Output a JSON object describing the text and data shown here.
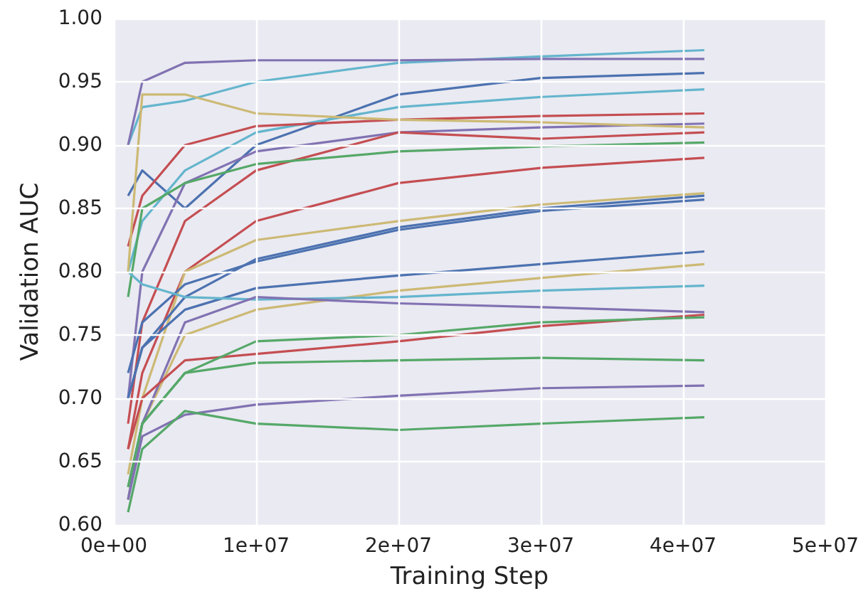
{
  "chart_data": {
    "type": "line",
    "xlabel": "Training Step",
    "ylabel": "Validation AUC",
    "x": [
      1000000,
      2000000,
      5000000,
      10000000,
      20000000,
      30000000,
      41500000
    ],
    "xlim": [
      0,
      50000000
    ],
    "xticks": [
      {
        "value": 0,
        "label": "0e+00"
      },
      {
        "value": 10000000,
        "label": "1e+07"
      },
      {
        "value": 20000000,
        "label": "2e+07"
      },
      {
        "value": 30000000,
        "label": "3e+07"
      },
      {
        "value": 40000000,
        "label": "4e+07"
      },
      {
        "value": 50000000,
        "label": "5e+07"
      }
    ],
    "ylim": [
      0.6,
      1.0
    ],
    "yticks": [
      {
        "value": 0.6,
        "label": "0.60"
      },
      {
        "value": 0.65,
        "label": "0.65"
      },
      {
        "value": 0.7,
        "label": "0.70"
      },
      {
        "value": 0.75,
        "label": "0.75"
      },
      {
        "value": 0.8,
        "label": "0.80"
      },
      {
        "value": 0.85,
        "label": "0.85"
      },
      {
        "value": 0.9,
        "label": "0.90"
      },
      {
        "value": 0.95,
        "label": "0.95"
      },
      {
        "value": 1.0,
        "label": "1.00"
      }
    ],
    "grid": true,
    "marker": "none",
    "line_style": "solid",
    "series": [
      {
        "color": "#64b5cd",
        "values": [
          0.9,
          0.93,
          0.935,
          0.95,
          0.965,
          0.97,
          0.975
        ]
      },
      {
        "color": "#8172b2",
        "values": [
          0.9,
          0.95,
          0.965,
          0.967,
          0.967,
          0.968,
          0.968
        ]
      },
      {
        "color": "#4c72b0",
        "values": [
          0.86,
          0.88,
          0.85,
          0.9,
          0.94,
          0.953,
          0.957
        ]
      },
      {
        "color": "#64b5cd",
        "values": [
          0.8,
          0.84,
          0.88,
          0.91,
          0.93,
          0.938,
          0.944
        ]
      },
      {
        "color": "#c44e52",
        "values": [
          0.82,
          0.86,
          0.9,
          0.915,
          0.92,
          0.923,
          0.925
        ]
      },
      {
        "color": "#8172b2",
        "values": [
          0.7,
          0.8,
          0.87,
          0.895,
          0.91,
          0.914,
          0.917
        ]
      },
      {
        "color": "#ccb974",
        "values": [
          0.8,
          0.94,
          0.94,
          0.925,
          0.92,
          0.918,
          0.914
        ]
      },
      {
        "color": "#c44e52",
        "values": [
          0.68,
          0.76,
          0.84,
          0.88,
          0.91,
          0.905,
          0.91
        ]
      },
      {
        "color": "#55a868",
        "values": [
          0.78,
          0.85,
          0.87,
          0.885,
          0.895,
          0.899,
          0.902
        ]
      },
      {
        "color": "#c44e52",
        "values": [
          0.66,
          0.72,
          0.8,
          0.84,
          0.87,
          0.882,
          0.89
        ]
      },
      {
        "color": "#ccb974",
        "values": [
          0.64,
          0.7,
          0.8,
          0.825,
          0.84,
          0.853,
          0.862
        ]
      },
      {
        "color": "#4c72b0",
        "values": [
          0.7,
          0.74,
          0.78,
          0.81,
          0.835,
          0.85,
          0.86
        ]
      },
      {
        "color": "#4c72b0",
        "values": [
          0.72,
          0.76,
          0.79,
          0.808,
          0.833,
          0.848,
          0.857
        ]
      },
      {
        "color": "#4c72b0",
        "values": [
          0.7,
          0.74,
          0.77,
          0.787,
          0.797,
          0.806,
          0.816
        ]
      },
      {
        "color": "#ccb974",
        "values": [
          0.62,
          0.68,
          0.75,
          0.77,
          0.785,
          0.795,
          0.806
        ]
      },
      {
        "color": "#64b5cd",
        "values": [
          0.8,
          0.79,
          0.78,
          0.778,
          0.78,
          0.785,
          0.789
        ]
      },
      {
        "color": "#8172b2",
        "values": [
          0.62,
          0.68,
          0.76,
          0.78,
          0.775,
          0.772,
          0.768
        ]
      },
      {
        "color": "#c44e52",
        "values": [
          0.66,
          0.7,
          0.73,
          0.735,
          0.745,
          0.757,
          0.766
        ]
      },
      {
        "color": "#55a868",
        "values": [
          0.63,
          0.68,
          0.72,
          0.745,
          0.75,
          0.76,
          0.764
        ]
      },
      {
        "color": "#55a868",
        "values": [
          0.63,
          0.68,
          0.72,
          0.728,
          0.73,
          0.732,
          0.73
        ]
      },
      {
        "color": "#8172b2",
        "values": [
          0.62,
          0.67,
          0.687,
          0.695,
          0.702,
          0.708,
          0.71
        ]
      },
      {
        "color": "#55a868",
        "values": [
          0.61,
          0.66,
          0.69,
          0.68,
          0.675,
          0.68,
          0.685
        ]
      }
    ]
  }
}
